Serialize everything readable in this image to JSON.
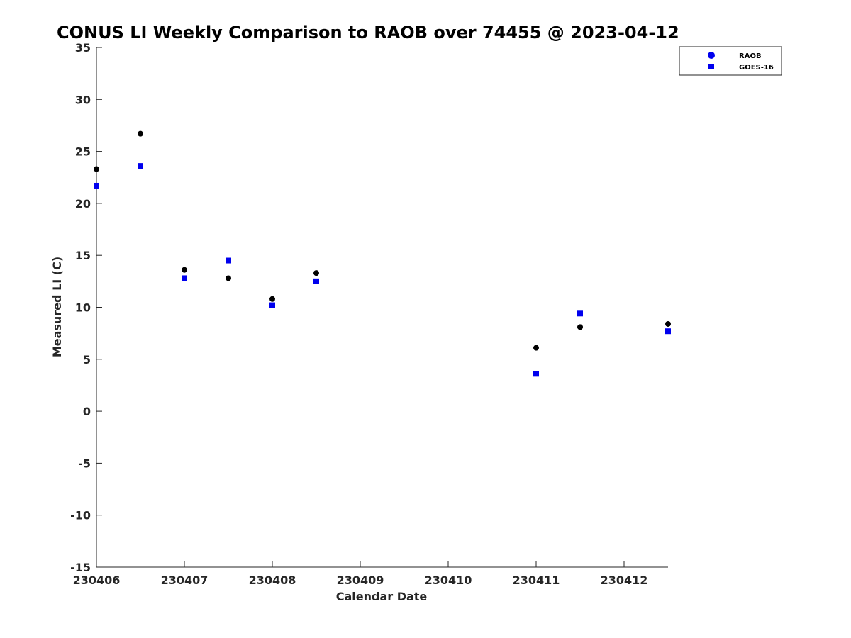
{
  "chart_data": {
    "type": "scatter",
    "title": "CONUS LI Weekly Comparison to RAOB over 74455 @ 2023-04-12",
    "xlabel": "Calendar Date",
    "ylabel": "Measured LI (C)",
    "xlim": [
      230406,
      230412.5
    ],
    "ylim": [
      -15,
      35
    ],
    "x_ticks": [
      230406,
      230407,
      230408,
      230409,
      230410,
      230411,
      230412
    ],
    "x_tick_labels": [
      "230406",
      "230407",
      "230408",
      "230409",
      "230410",
      "230411",
      "230412"
    ],
    "y_ticks": [
      35,
      30,
      25,
      20,
      15,
      10,
      5,
      0,
      -5,
      -10,
      -15
    ],
    "y_tick_labels": [
      "35",
      "30",
      "25",
      "20",
      "15",
      "10",
      "5",
      "0",
      "-5",
      "-10",
      "-15"
    ],
    "grid": false,
    "legend_position": "top-right",
    "series": [
      {
        "name": "RAOB",
        "marker": "circle",
        "color": "#000000",
        "legend_color": "#0000ee",
        "points": [
          {
            "x": 230406.0,
            "y": 23.3
          },
          {
            "x": 230406.5,
            "y": 26.7
          },
          {
            "x": 230407.0,
            "y": 13.6
          },
          {
            "x": 230407.5,
            "y": 12.8
          },
          {
            "x": 230408.0,
            "y": 10.8
          },
          {
            "x": 230408.5,
            "y": 13.3
          },
          {
            "x": 230411.0,
            "y": 6.1
          },
          {
            "x": 230411.5,
            "y": 8.1
          },
          {
            "x": 230412.5,
            "y": 8.4
          }
        ]
      },
      {
        "name": "GOES-16",
        "marker": "square",
        "color": "#0000ee",
        "legend_color": "#0000ee",
        "points": [
          {
            "x": 230406.0,
            "y": 21.7
          },
          {
            "x": 230406.5,
            "y": 23.6
          },
          {
            "x": 230407.0,
            "y": 12.8
          },
          {
            "x": 230407.5,
            "y": 14.5
          },
          {
            "x": 230408.0,
            "y": 10.2
          },
          {
            "x": 230408.5,
            "y": 12.5
          },
          {
            "x": 230411.0,
            "y": 3.6
          },
          {
            "x": 230411.5,
            "y": 9.4
          },
          {
            "x": 230412.5,
            "y": 7.7
          }
        ]
      }
    ]
  }
}
